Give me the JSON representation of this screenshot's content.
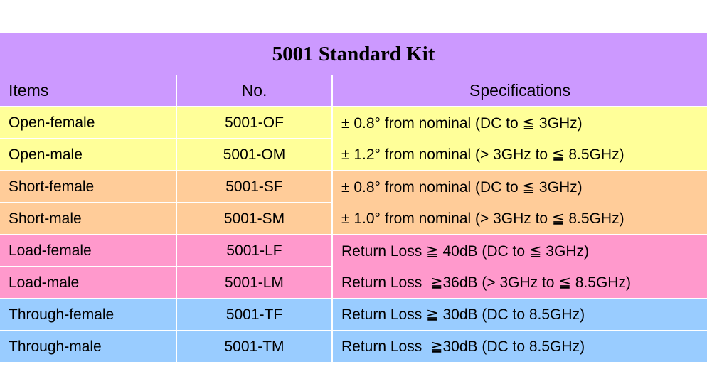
{
  "table": {
    "title": "5001 Standard Kit",
    "headers": {
      "items": "Items",
      "no": "No.",
      "specifications": "Specifications"
    },
    "colors": {
      "header": "#cc99ff",
      "open": "#ffff99",
      "short": "#ffcc99",
      "load": "#ff99cc",
      "through": "#99ccff"
    },
    "rows": [
      {
        "item": "Open-female",
        "no": "5001-OF",
        "spec": "± 0.8° from nominal (DC to ≦ 3GHz)"
      },
      {
        "item": "Open-male",
        "no": "5001-OM",
        "spec": "± 1.2° from nominal (> 3GHz to ≦ 8.5GHz)"
      },
      {
        "item": "Short-female",
        "no": "5001-SF",
        "spec": "± 0.8° from nominal (DC to ≦ 3GHz)"
      },
      {
        "item": "Short-male",
        "no": "5001-SM",
        "spec": "± 1.0° from nominal (> 3GHz to ≦ 8.5GHz)"
      },
      {
        "item": "Load-female",
        "no": "5001-LF",
        "spec": "Return Loss ≧ 40dB (DC to ≦ 3GHz)"
      },
      {
        "item": "Load-male",
        "no": "5001-LM",
        "spec": "Return Loss  ≧36dB (> 3GHz to ≦ 8.5GHz)"
      },
      {
        "item": "Through-female",
        "no": "5001-TF",
        "spec": "Return Loss ≧ 30dB (DC to 8.5GHz)"
      },
      {
        "item": "Through-male",
        "no": "5001-TM",
        "spec": "Return Loss  ≧30dB (DC to 8.5GHz)"
      }
    ]
  }
}
